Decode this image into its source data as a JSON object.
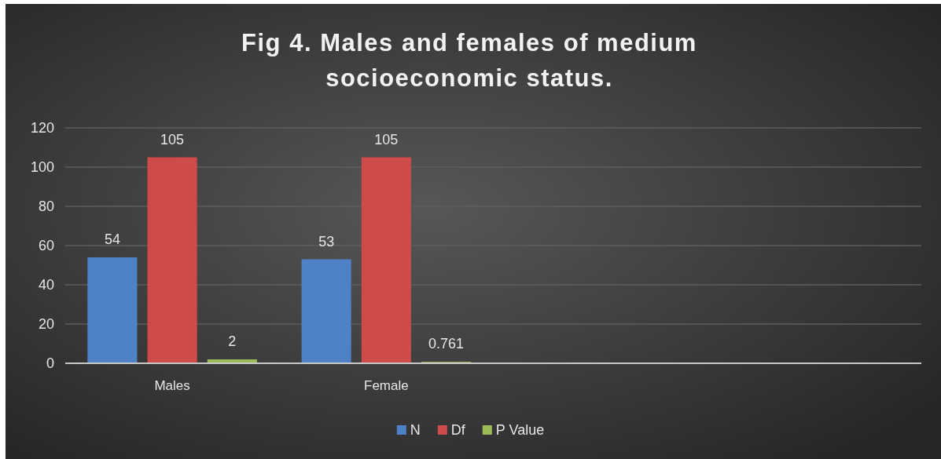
{
  "chart_data": {
    "type": "bar",
    "title": "Fig 4. Males and females of medium socioeconomic status.",
    "categories": [
      "Males",
      "Female",
      null,
      null
    ],
    "series": [
      {
        "name": "N",
        "color": "#4f81c7",
        "values": [
          54,
          53,
          null,
          null
        ]
      },
      {
        "name": "Df",
        "color": "#cf4b49",
        "values": [
          105,
          105,
          null,
          null
        ]
      },
      {
        "name": "P Value",
        "color": "#9bbb59",
        "values": [
          2,
          0.761,
          null,
          null
        ]
      }
    ],
    "ylim": [
      0,
      120
    ],
    "yticks": [
      0,
      20,
      40,
      60,
      80,
      100,
      120
    ],
    "grid": true,
    "legend": "bottom",
    "data_labels": true
  }
}
